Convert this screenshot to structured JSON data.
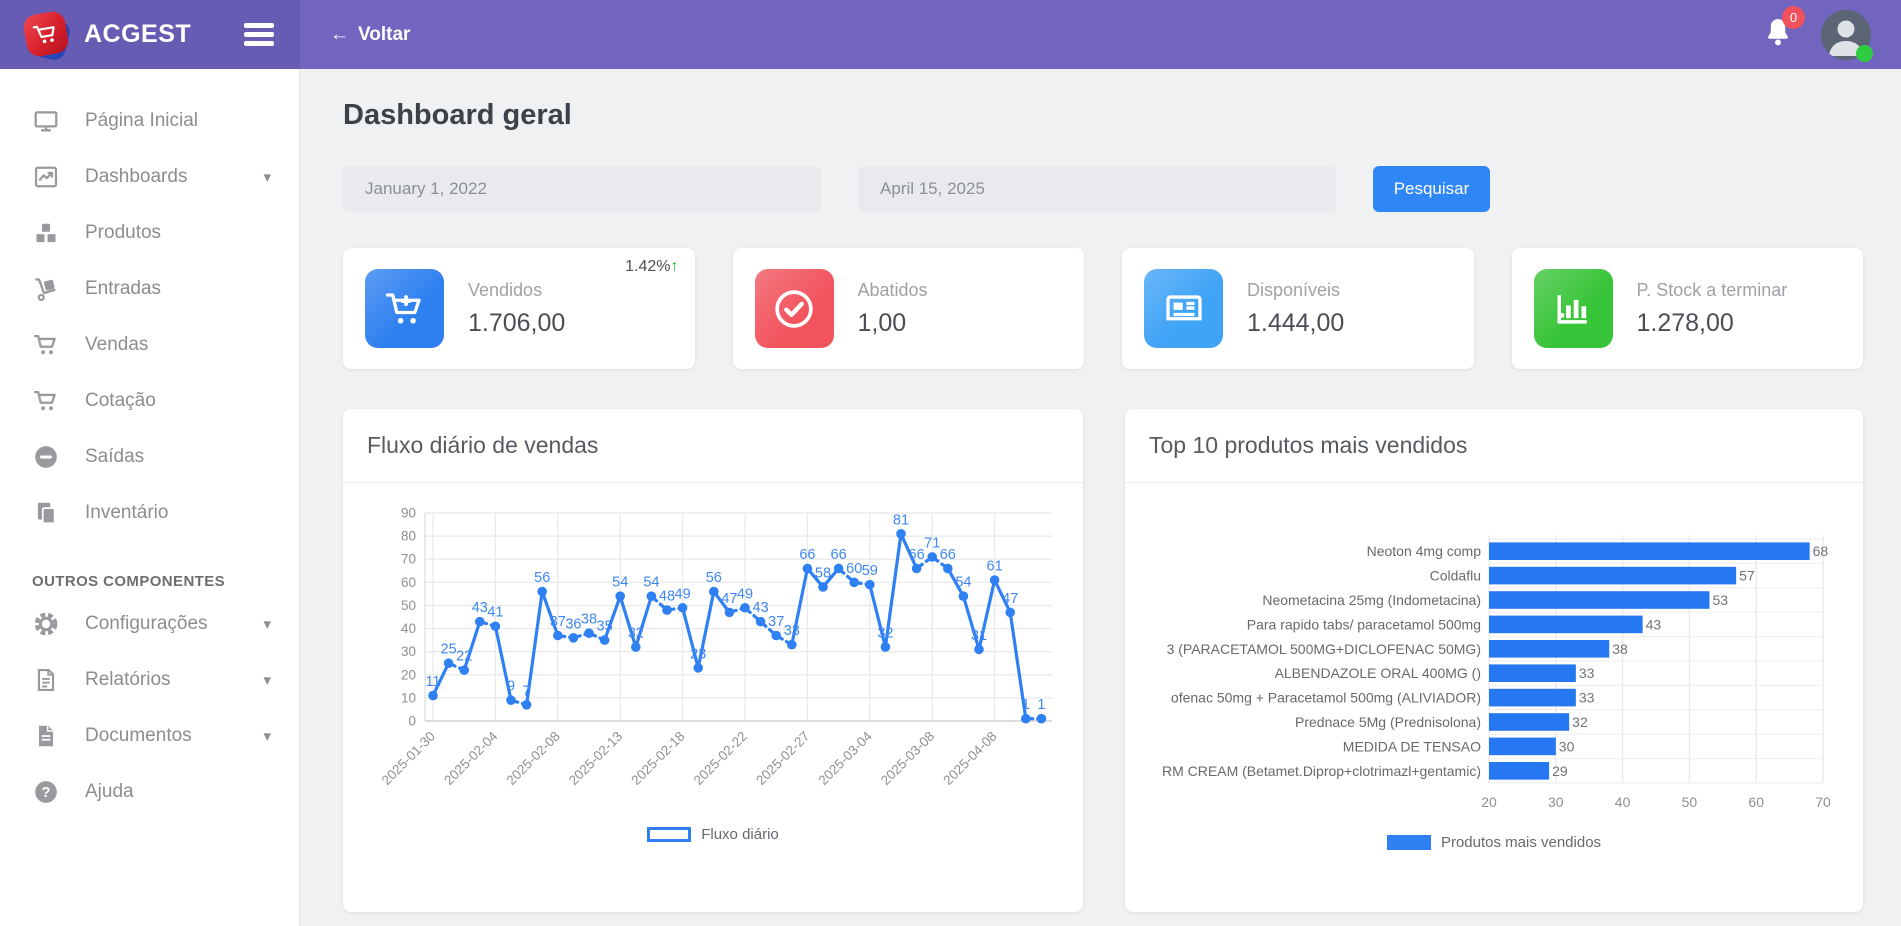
{
  "header": {
    "brand": "ACGEST",
    "back_label": "Voltar",
    "back_arrow": "←",
    "notification_count": "0"
  },
  "sidebar": {
    "items": [
      {
        "label": "Página Inicial",
        "icon": "desktop-icon",
        "caret": false
      },
      {
        "label": "Dashboards",
        "icon": "chart-line-icon",
        "caret": true
      },
      {
        "label": "Produtos",
        "icon": "boxes-icon",
        "caret": false
      },
      {
        "label": "Entradas",
        "icon": "dolly-icon",
        "caret": false
      },
      {
        "label": "Vendas",
        "icon": "cart-icon",
        "caret": false
      },
      {
        "label": "Cotação",
        "icon": "cart-icon",
        "caret": false
      },
      {
        "label": "Saídas",
        "icon": "minus-circle-icon",
        "caret": false
      },
      {
        "label": "Inventário",
        "icon": "clipboard-icon",
        "caret": false
      }
    ],
    "section_label": "OUTROS COMPONENTES",
    "items_secondary": [
      {
        "label": "Configurações",
        "icon": "gear-icon",
        "caret": true
      },
      {
        "label": "Relatórios",
        "icon": "file-invoice-icon",
        "caret": true
      },
      {
        "label": "Documentos",
        "icon": "file-icon",
        "caret": true
      },
      {
        "label": "Ajuda",
        "icon": "question-circle-icon",
        "caret": false
      }
    ],
    "caret_glyph": "▾"
  },
  "page": {
    "title": "Dashboard geral"
  },
  "filters": {
    "date_from": "January 1, 2022",
    "date_to": "April 15, 2025",
    "search_label": "Pesquisar"
  },
  "stats": [
    {
      "label": "Vendidos",
      "value": "1.706,00",
      "icon": "cart-plus-icon",
      "tile_color": "#2e80f0",
      "delta": "1.42%",
      "delta_arrow": "↑",
      "delta_direction": "up"
    },
    {
      "label": "Abatidos",
      "value": "1,00",
      "icon": "check-circle-icon",
      "tile_color": "#f2545e"
    },
    {
      "label": "Disponíveis",
      "value": "1.444,00",
      "icon": "newspaper-icon",
      "tile_color": "#3fa3f6"
    },
    {
      "label": "P. Stock a terminar",
      "value": "1.278,00",
      "icon": "bar-chart-icon",
      "tile_color": "#38c438"
    }
  ],
  "chart_data": [
    {
      "type": "line",
      "title": "Fluxo diário de vendas",
      "legend": "Fluxo diário",
      "color": "#2f80f2",
      "ylim": [
        0,
        90
      ],
      "y_ticks": [
        0,
        10,
        20,
        30,
        40,
        50,
        60,
        70,
        80,
        90
      ],
      "x_tick_labels": [
        "2025-01-30",
        "2025-02-04",
        "2025-02-08",
        "2025-02-13",
        "2025-02-18",
        "2025-02-22",
        "2025-02-27",
        "2025-03-04",
        "2025-03-08",
        "2025-04-08"
      ],
      "tick_interval": 4,
      "values": [
        11,
        25,
        22,
        43,
        41,
        9,
        7,
        56,
        37,
        36,
        38,
        35,
        54,
        32,
        54,
        48,
        49,
        23,
        56,
        47,
        49,
        43,
        37,
        33,
        66,
        58,
        66,
        60,
        59,
        32,
        81,
        66,
        71,
        66,
        54,
        31,
        61,
        47,
        1,
        1
      ],
      "grid": true,
      "legend_position": "bottom"
    },
    {
      "type": "bar",
      "orientation": "horizontal",
      "title": "Top 10 produtos mais vendidos",
      "legend": "Produtos mais vendidos",
      "color": "#2577f2",
      "xlim": [
        20,
        70
      ],
      "x_ticks": [
        20,
        30,
        40,
        50,
        60,
        70
      ],
      "categories": [
        "Neoton 4mg comp",
        "Coldaflu",
        "Neometacina 25mg (Indometacina)",
        "Para rapido tabs/ paracetamol 500mg",
        "3 (PARACETAMOL 500MG+DICLOFENAC 50MG)",
        "ALBENDAZOLE ORAL 400MG ()",
        "ofenac 50mg + Paracetamol 500mg (ALIVIADOR)",
        "Prednace 5Mg (Prednisolona)",
        "MEDIDA DE TENSAO",
        "RM CREAM (Betamet.Diprop+clotrimazl+gentamic)"
      ],
      "values": [
        68,
        57,
        53,
        43,
        38,
        33,
        33,
        32,
        30,
        29
      ],
      "grid": true,
      "legend_position": "bottom"
    }
  ]
}
